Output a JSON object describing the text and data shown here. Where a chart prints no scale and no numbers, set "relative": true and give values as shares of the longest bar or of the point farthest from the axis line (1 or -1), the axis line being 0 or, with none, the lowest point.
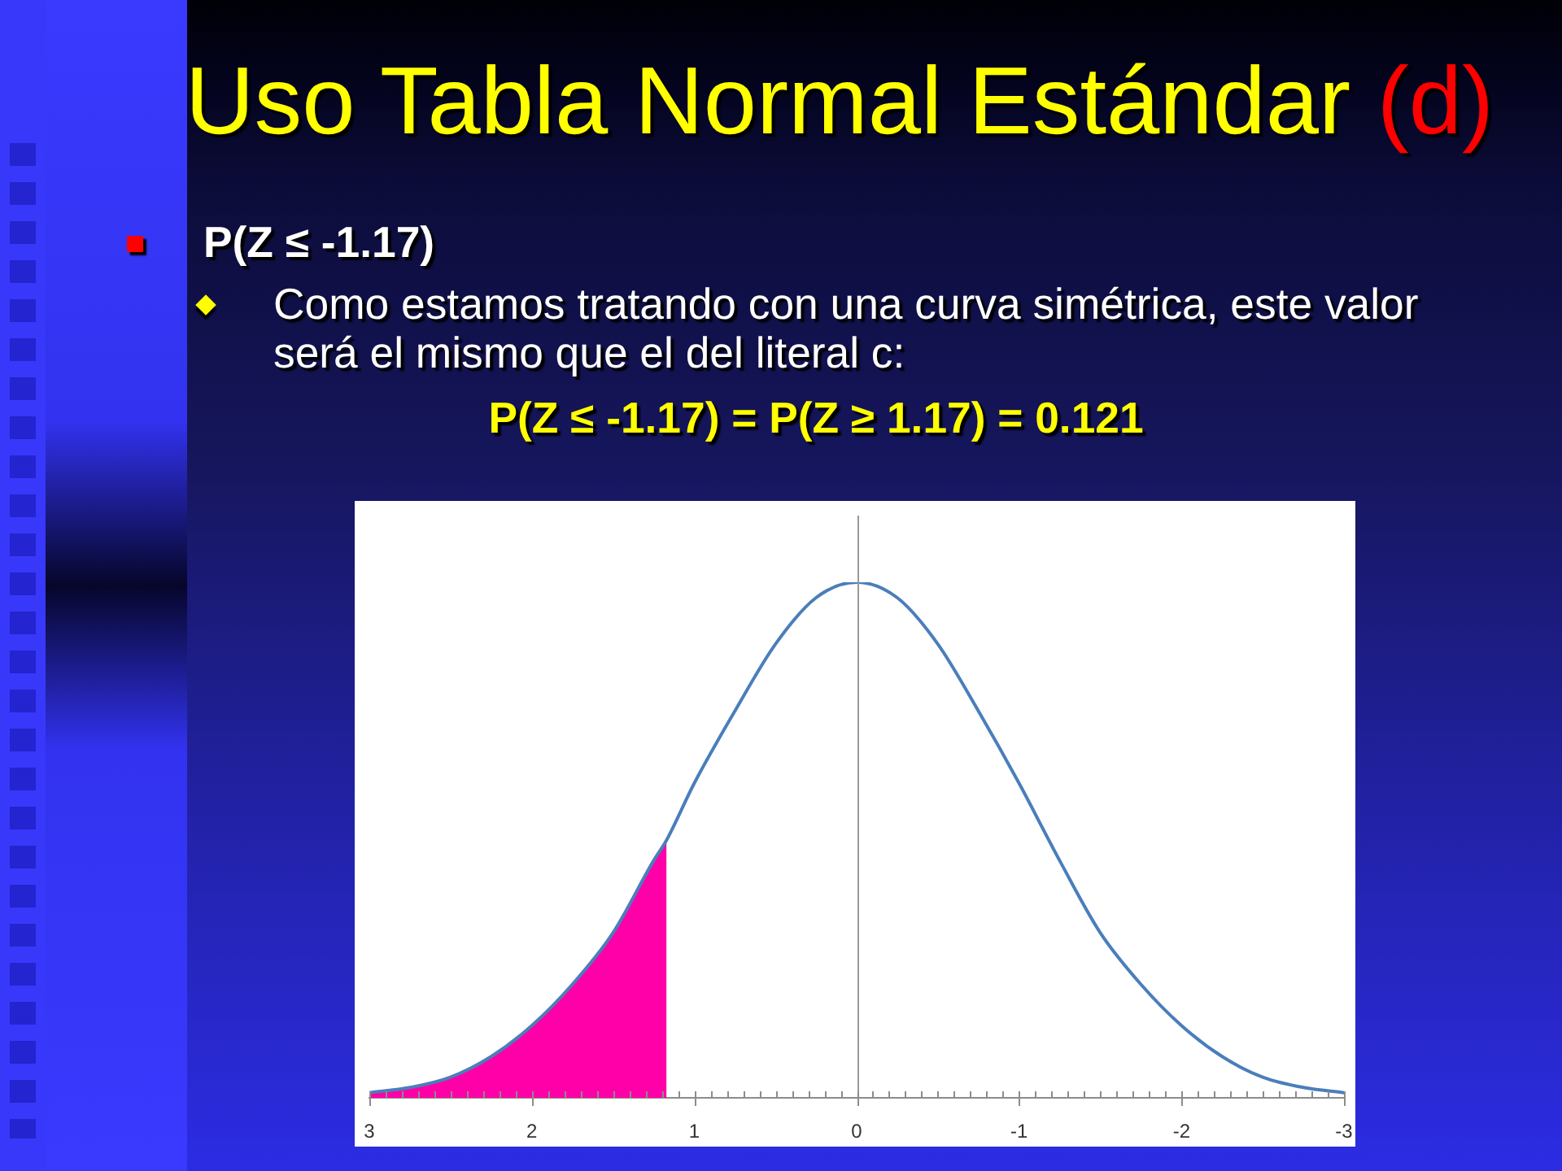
{
  "chart_data": {
    "type": "line",
    "title": "Uso Tabla Normal Estándar (d)",
    "subtitle": "P(Z ≤ -1.17)",
    "annotations": [
      "Como estamos tratando con una curva simétrica, este valor será el mismo que el del literal c:",
      "P(Z ≤ -1.17) = P(Z ≥ 1.17) = 0.121"
    ],
    "relative": true,
    "xlim": [
      3,
      -3
    ],
    "xticks": [
      3,
      {
        "value": 2.9,
        "label": null
      },
      {
        "value": 2.8,
        "label": null
      },
      {
        "value": 2.7,
        "label": null
      },
      {
        "value": 2.6,
        "label": null
      },
      {
        "value": 2.5,
        "label": null
      },
      {
        "value": 2.4,
        "label": null
      },
      {
        "value": 2.3,
        "label": null
      },
      {
        "value": 2.2,
        "label": null
      },
      {
        "value": 2.1,
        "label": null
      },
      2,
      {
        "value": 1.9,
        "label": null
      },
      {
        "value": 1.8,
        "label": null
      },
      {
        "value": 1.7,
        "label": null
      },
      {
        "value": 1.6,
        "label": null
      },
      {
        "value": 1.5,
        "label": null
      },
      {
        "value": 1.4,
        "label": null
      },
      {
        "value": 1.3,
        "label": null
      },
      {
        "value": 1.2,
        "label": null
      },
      {
        "value": 1.1,
        "label": null
      },
      1,
      {
        "value": 0.9,
        "label": null
      },
      {
        "value": 0.8,
        "label": null
      },
      {
        "value": 0.7,
        "label": null
      },
      {
        "value": 0.6,
        "label": null
      },
      {
        "value": 0.5,
        "label": null
      },
      {
        "value": 0.4,
        "label": null
      },
      {
        "value": 0.3,
        "label": null
      },
      {
        "value": 0.2,
        "label": null
      },
      {
        "value": 0.1,
        "label": null
      },
      0,
      {
        "value": -0.1,
        "label": null
      },
      {
        "value": -0.2,
        "label": null
      },
      {
        "value": -0.3,
        "label": null
      },
      {
        "value": -0.4,
        "label": null
      },
      {
        "value": -0.5,
        "label": null
      },
      {
        "value": -0.6,
        "label": null
      },
      {
        "value": -0.7,
        "label": null
      },
      {
        "value": -0.8,
        "label": null
      },
      {
        "value": -0.9,
        "label": null
      },
      -1,
      {
        "value": -1.1,
        "label": null
      },
      {
        "value": -1.2,
        "label": null
      },
      {
        "value": -1.3,
        "label": null
      },
      {
        "value": -1.4,
        "label": null
      },
      {
        "value": -1.5,
        "label": null
      },
      {
        "value": -1.6,
        "label": null
      },
      {
        "value": -1.7,
        "label": null
      },
      {
        "value": -1.8,
        "label": null
      },
      {
        "value": -1.9,
        "label": null
      },
      -2,
      {
        "value": -2.1,
        "label": null
      },
      {
        "value": -2.2,
        "label": null
      },
      {
        "value": -2.3,
        "label": null
      },
      {
        "value": -2.4,
        "label": null
      },
      {
        "value": -2.5,
        "label": null
      },
      {
        "value": -2.6,
        "label": null
      },
      {
        "value": -2.7,
        "label": null
      },
      {
        "value": -2.8,
        "label": null
      },
      {
        "value": -2.9,
        "label": null
      },
      -3
    ],
    "series": [
      {
        "type": "line",
        "color": "#4a7ebb",
        "x": [
          3,
          2.75,
          2.5,
          2.25,
          2,
          1.75,
          1.5,
          1.25,
          1.17,
          1,
          0.75,
          0.5,
          0.25,
          0,
          -0.25,
          -0.5,
          -0.75,
          -1,
          -1.25,
          -1.5,
          -1.75,
          -2,
          -2.25,
          -2.5,
          -2.75,
          -3
        ],
        "values": [
          0.01,
          0.02,
          0.04,
          0.08,
          0.14,
          0.22,
          0.32,
          0.46,
          0.5,
          0.61,
          0.75,
          0.88,
          0.97,
          1,
          0.97,
          0.88,
          0.75,
          0.61,
          0.46,
          0.32,
          0.22,
          0.14,
          0.08,
          0.04,
          0.02,
          0.01
        ]
      },
      {
        "type": "area",
        "color": "#ff00a8",
        "x": [
          3,
          2.75,
          2.5,
          2.25,
          2,
          1.75,
          1.5,
          1.25,
          1.17
        ],
        "values": [
          0.01,
          0.02,
          0.04,
          0.08,
          0.14,
          0.22,
          0.32,
          0.46,
          0.5
        ]
      }
    ],
    "ref_lines": [
      {
        "axis": "x",
        "value": 0,
        "color": "#9a9a9a"
      }
    ]
  }
}
